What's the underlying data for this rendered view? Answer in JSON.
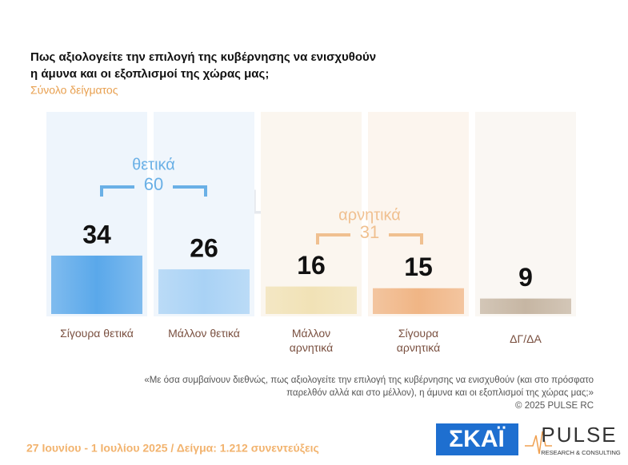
{
  "chart_data": {
    "type": "bar",
    "title": [
      "Πως αξιολογείτε την επιλογή της κυβέρνησης να ενισχυθούν",
      "η άμυνα και οι εξοπλισμοί της χώρας μας;"
    ],
    "subtitle": "Σύνολο δείγματος",
    "categories": [
      "Σίγουρα θετικά",
      "Μάλλον θετικά",
      "Μάλλον αρνητικά",
      "Σίγουρα αρνητικά",
      "ΔΓ/ΔΑ"
    ],
    "values": [
      34,
      26,
      16,
      15,
      9
    ],
    "colors": [
      "#5aa8ea",
      "#a9d2f5",
      "#f1e2b6",
      "#f0b585",
      "#c6b6a3"
    ],
    "groups": [
      {
        "name": "θετικά",
        "value": 60,
        "color": "#6ab0e6"
      },
      {
        "name": "αρνητικά",
        "value": 31,
        "color": "#f0c090"
      }
    ],
    "footnote": [
      "«Με όσα συμβαίνουν διεθνώς, πως αξιολογείτε την επιλογή της κυβέρνησης να ενισχυθούν (και στο πρόσφατο",
      "παρελθόν αλλά και στο μέλλον), η άμυνα και οι εξοπλισμοί της χώρας μας;»"
    ],
    "copyright": "©  2025  PULSE RC",
    "fieldwork": "27 Ιουνίου - 1 Ιουλίου 2025  /  Δείγμα:  1.212 συνεντεύξεις",
    "logos": {
      "skai": "ΣΚΑΪ",
      "pulse": "PULSE",
      "pulse_tagline": "RESEARCH & CONSULTING"
    }
  }
}
